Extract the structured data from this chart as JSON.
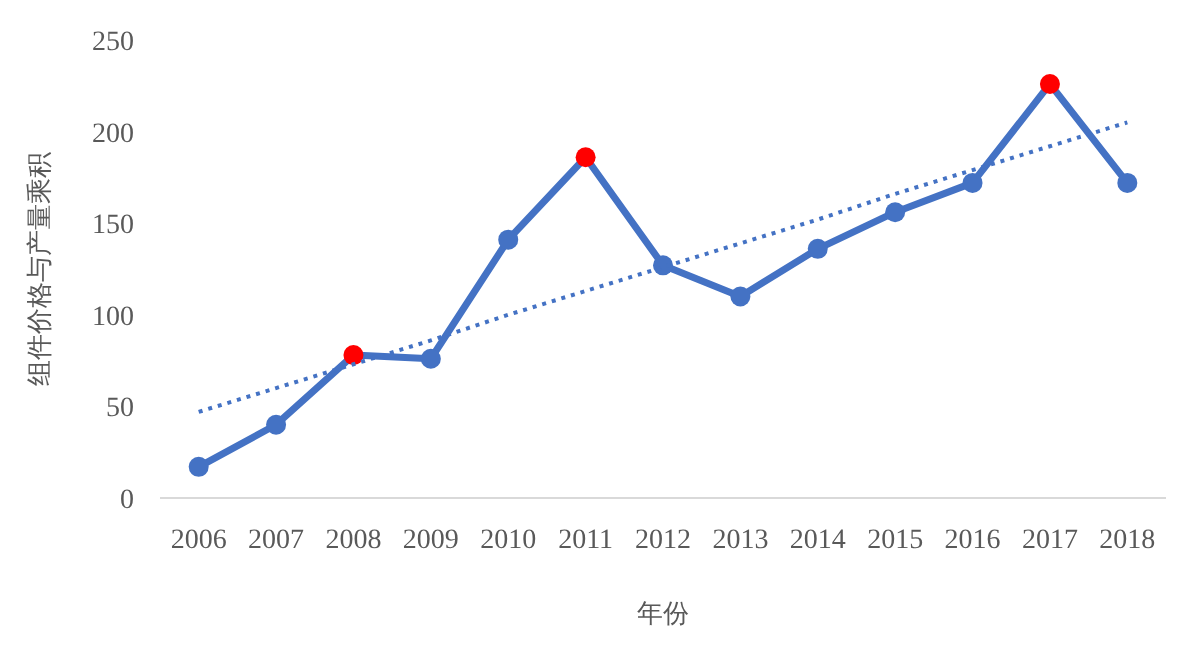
{
  "chart_data": {
    "type": "line",
    "xlabel": "年份",
    "ylabel": "组件价格与产量乘积",
    "categories": [
      "2006",
      "2007",
      "2008",
      "2009",
      "2010",
      "2011",
      "2012",
      "2013",
      "2014",
      "2015",
      "2016",
      "2017",
      "2018"
    ],
    "series": [
      {
        "color": "#4472c4",
        "marker": "circle",
        "line_style": "solid",
        "values": [
          17,
          40,
          78,
          76,
          141,
          186,
          127,
          110,
          136,
          156,
          172,
          226,
          172
        ],
        "colors": [
          "#4472c4",
          "#4472c4",
          "#ff0000",
          "#4472c4",
          "#4472c4",
          "#ff0000",
          "#4472c4",
          "#4472c4",
          "#4472c4",
          "#4472c4",
          "#4472c4",
          "#ff0000",
          "#4472c4"
        ]
      },
      {
        "color": "#4472c4",
        "marker": "none",
        "line_style": "dotted",
        "values": [
          47,
          60,
          73,
          86,
          100,
          113,
          126,
          139,
          152,
          166,
          179,
          192,
          205
        ]
      }
    ],
    "ylim": [
      0,
      250
    ],
    "yticks": [
      0,
      50,
      100,
      150,
      200,
      250
    ]
  }
}
